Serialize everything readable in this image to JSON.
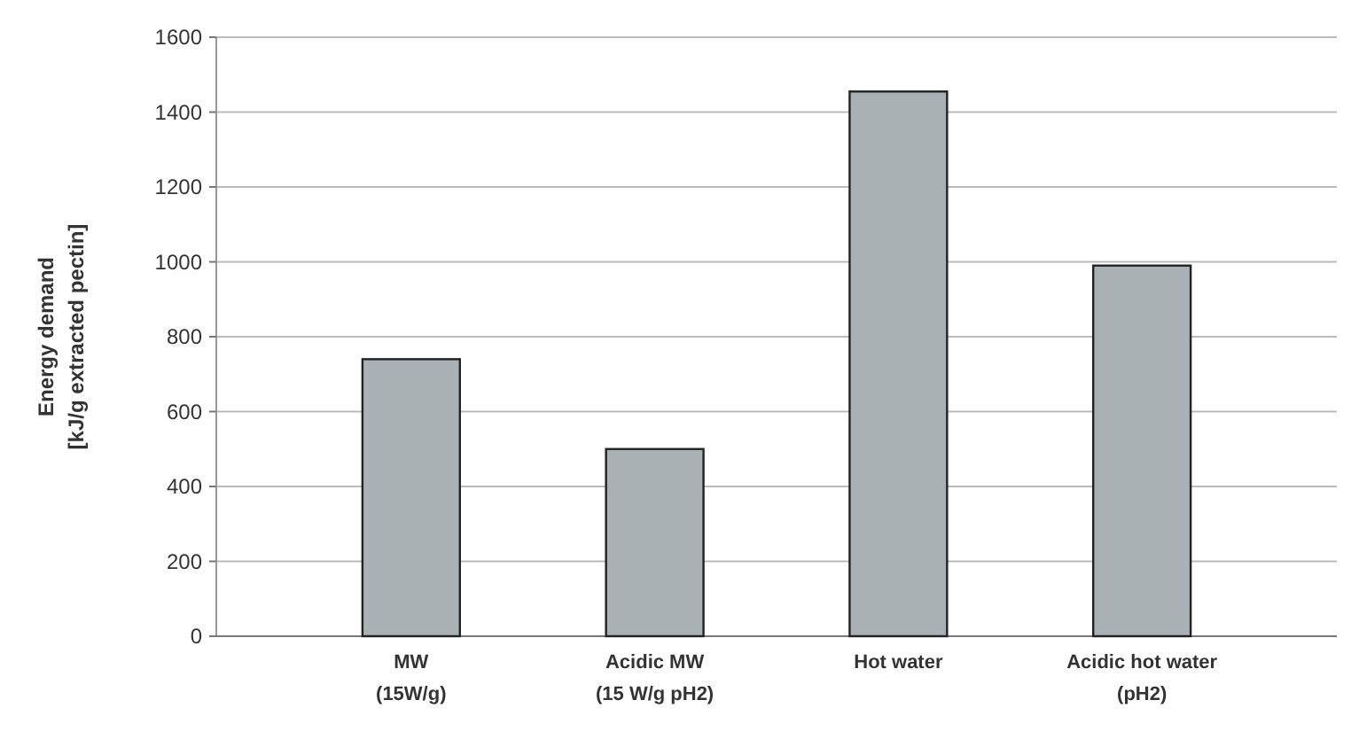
{
  "chart_data": {
    "type": "bar",
    "ylabel": "Energy demand\n[kJ/g extracted pectin]",
    "categories": [
      "MW\n(15W/g)",
      "Acidic MW\n(15 W/g pH2)",
      "Hot water",
      "Acidic hot water\n(pH2)"
    ],
    "values": [
      740,
      500,
      1455,
      990
    ],
    "color": "#a9b1b4",
    "ylim": [
      0,
      1600
    ],
    "yticks": [
      0,
      200,
      400,
      600,
      800,
      1000,
      1200,
      1400,
      1600
    ],
    "grid": "y"
  }
}
